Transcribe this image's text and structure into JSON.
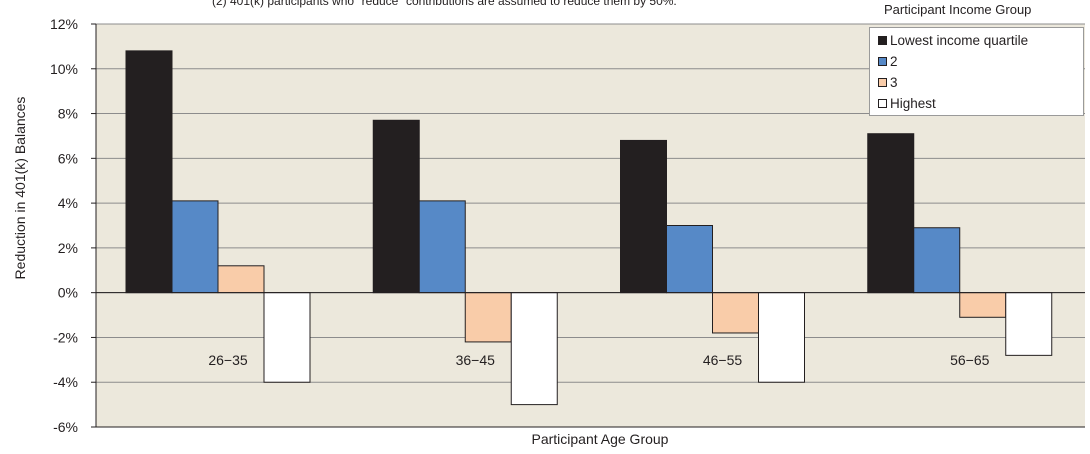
{
  "chart_data": {
    "type": "bar",
    "note": "(2) 401(k) participants who \"reduce\" contributions are assumed to reduce them by 50%.",
    "xlabel": "Participant Age Group",
    "ylabel": "Reduction in 401(k) Balances",
    "legend_title": "Participant Income Group",
    "legend_position": "top-right",
    "grid": true,
    "ylim": [
      -6,
      12
    ],
    "yticks": [
      "12%",
      "10%",
      "8%",
      "6%",
      "4%",
      "2%",
      "0%",
      "-2%",
      "-4%",
      "-6%"
    ],
    "categories": [
      "26−35",
      "36−45",
      "46−55",
      "56−65"
    ],
    "series": [
      {
        "name": "Lowest income quartile",
        "color": "#231f20",
        "values": [
          10.8,
          7.7,
          6.8,
          7.1
        ]
      },
      {
        "name": "2",
        "color": "#5689c7",
        "values": [
          4.1,
          4.1,
          3.0,
          2.9
        ]
      },
      {
        "name": "3",
        "color": "#f9cca9",
        "values": [
          1.2,
          -2.2,
          -1.8,
          -1.1
        ]
      },
      {
        "name": "Highest",
        "color": "#ffffff",
        "values": [
          -4.0,
          -5.0,
          -4.0,
          -2.8
        ]
      }
    ],
    "colors": {
      "plot_background": "#ece8dc",
      "grid": "#8c8c8c"
    }
  }
}
